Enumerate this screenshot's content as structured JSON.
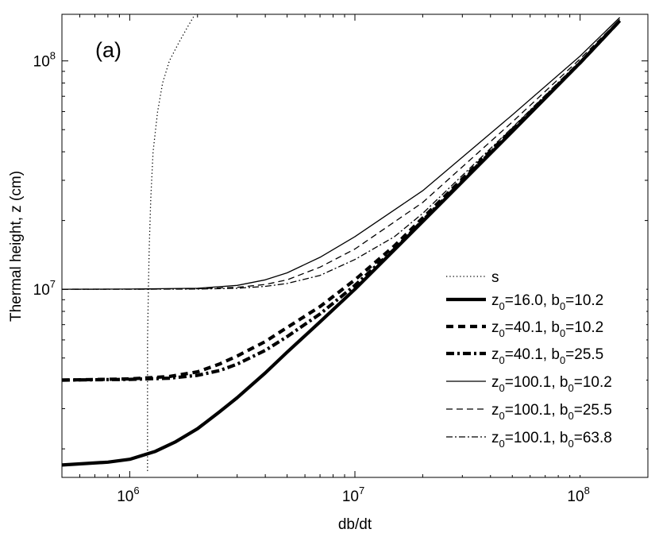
{
  "chart_data": {
    "type": "line",
    "panel_label": "(a)",
    "xlabel": "db/dt",
    "ylabel": "Thermal height, z (cm)",
    "xscale": "log",
    "yscale": "log",
    "xlim": [
      500000,
      200000000
    ],
    "ylim": [
      1500000,
      160000000
    ],
    "grid": false,
    "legend_position": "lower-right",
    "x_ticks": [
      {
        "value": 1000000,
        "base": "10",
        "exp": "6"
      },
      {
        "value": 10000000,
        "base": "10",
        "exp": "7"
      },
      {
        "value": 100000000,
        "base": "10",
        "exp": "8"
      }
    ],
    "y_ticks": [
      {
        "value": 10000000,
        "base": "10",
        "exp": "7"
      },
      {
        "value": 100000000,
        "base": "10",
        "exp": "8"
      }
    ],
    "series": [
      {
        "name": "s",
        "style": "dotted",
        "legend_parts": [
          {
            "t": "s"
          }
        ],
        "points": [
          [
            1200000,
            1600000
          ],
          [
            1200000,
            2500000
          ],
          [
            1200000,
            4000000
          ],
          [
            1200000,
            6000000
          ],
          [
            1210000,
            10000000
          ],
          [
            1220000,
            15000000
          ],
          [
            1240000,
            25000000
          ],
          [
            1270000,
            40000000
          ],
          [
            1330000,
            60000000
          ],
          [
            1400000,
            80000000
          ],
          [
            1500000,
            100000000
          ],
          [
            1650000,
            120000000
          ],
          [
            1800000,
            140000000
          ],
          [
            1950000,
            160000000
          ]
        ]
      },
      {
        "name": "z0=16.0, b0=10.2",
        "style": "thick-solid",
        "legend_parts": [
          {
            "t": "z"
          },
          {
            "t": "0",
            "sub": true
          },
          {
            "t": "=16.0, b"
          },
          {
            "t": "0",
            "sub": true
          },
          {
            "t": "=10.2"
          }
        ],
        "points": [
          [
            500000,
            1700000
          ],
          [
            800000,
            1750000
          ],
          [
            1000000,
            1800000
          ],
          [
            1300000,
            1950000
          ],
          [
            1600000,
            2150000
          ],
          [
            2000000,
            2450000
          ],
          [
            2500000,
            2900000
          ],
          [
            3000000,
            3350000
          ],
          [
            4000000,
            4300000
          ],
          [
            5000000,
            5300000
          ],
          [
            7000000,
            7200000
          ],
          [
            10000000,
            10000000
          ],
          [
            20000000,
            19800000
          ],
          [
            50000000,
            49000000
          ],
          [
            100000000,
            98000000
          ],
          [
            150000000,
            150000000
          ]
        ]
      },
      {
        "name": "z0=40.1, b0=10.2",
        "style": "thick-dashed",
        "legend_parts": [
          {
            "t": "z"
          },
          {
            "t": "0",
            "sub": true
          },
          {
            "t": "=40.1, b"
          },
          {
            "t": "0",
            "sub": true
          },
          {
            "t": "=10.2"
          }
        ],
        "points": [
          [
            500000,
            4000000
          ],
          [
            1000000,
            4050000
          ],
          [
            1500000,
            4150000
          ],
          [
            2000000,
            4350000
          ],
          [
            2500000,
            4700000
          ],
          [
            3000000,
            5100000
          ],
          [
            4000000,
            5900000
          ],
          [
            5000000,
            6800000
          ],
          [
            7000000,
            8400000
          ],
          [
            10000000,
            11000000
          ],
          [
            15000000,
            15500000
          ],
          [
            20000000,
            20500000
          ],
          [
            50000000,
            50000000
          ],
          [
            100000000,
            98000000
          ],
          [
            150000000,
            150000000
          ]
        ]
      },
      {
        "name": "z0=40.1, b0=25.5",
        "style": "thick-dashdot",
        "legend_parts": [
          {
            "t": "z"
          },
          {
            "t": "0",
            "sub": true
          },
          {
            "t": "=40.1, b"
          },
          {
            "t": "0",
            "sub": true
          },
          {
            "t": "=25.5"
          }
        ],
        "points": [
          [
            500000,
            4000000
          ],
          [
            1000000,
            4030000
          ],
          [
            1500000,
            4080000
          ],
          [
            2000000,
            4200000
          ],
          [
            2500000,
            4400000
          ],
          [
            3000000,
            4700000
          ],
          [
            4000000,
            5400000
          ],
          [
            5000000,
            6200000
          ],
          [
            7000000,
            7800000
          ],
          [
            10000000,
            10400000
          ],
          [
            15000000,
            15000000
          ],
          [
            20000000,
            20000000
          ],
          [
            50000000,
            49500000
          ],
          [
            100000000,
            98000000
          ],
          [
            150000000,
            150000000
          ]
        ]
      },
      {
        "name": "z0=100.1, b0=10.2",
        "style": "thin-solid",
        "legend_parts": [
          {
            "t": "z"
          },
          {
            "t": "0",
            "sub": true
          },
          {
            "t": "=100.1, b"
          },
          {
            "t": "0",
            "sub": true
          },
          {
            "t": "=10.2"
          }
        ],
        "points": [
          [
            500000,
            10000000
          ],
          [
            1000000,
            10020000
          ],
          [
            2000000,
            10100000
          ],
          [
            3000000,
            10400000
          ],
          [
            4000000,
            11000000
          ],
          [
            5000000,
            11800000
          ],
          [
            7000000,
            13800000
          ],
          [
            10000000,
            17000000
          ],
          [
            20000000,
            27000000
          ],
          [
            50000000,
            58000000
          ],
          [
            100000000,
            105000000
          ],
          [
            150000000,
            155000000
          ]
        ]
      },
      {
        "name": "z0=100.1, b0=25.5",
        "style": "thin-dashed",
        "legend_parts": [
          {
            "t": "z"
          },
          {
            "t": "0",
            "sub": true
          },
          {
            "t": "=100.1, b"
          },
          {
            "t": "0",
            "sub": true
          },
          {
            "t": "=25.5"
          }
        ],
        "points": [
          [
            500000,
            10000000
          ],
          [
            1000000,
            10010000
          ],
          [
            2000000,
            10050000
          ],
          [
            3000000,
            10200000
          ],
          [
            4000000,
            10500000
          ],
          [
            5000000,
            11000000
          ],
          [
            7000000,
            12500000
          ],
          [
            10000000,
            15000000
          ],
          [
            20000000,
            24000000
          ],
          [
            50000000,
            54000000
          ],
          [
            100000000,
            102000000
          ],
          [
            150000000,
            152000000
          ]
        ]
      },
      {
        "name": "z0=100.1, b0=63.8",
        "style": "thin-dashdot",
        "legend_parts": [
          {
            "t": "z"
          },
          {
            "t": "0",
            "sub": true
          },
          {
            "t": "=100.1, b"
          },
          {
            "t": "0",
            "sub": true
          },
          {
            "t": "=63.8"
          }
        ],
        "points": [
          [
            500000,
            10000000
          ],
          [
            1000000,
            10000000
          ],
          [
            2000000,
            10020000
          ],
          [
            3000000,
            10100000
          ],
          [
            4000000,
            10300000
          ],
          [
            5000000,
            10600000
          ],
          [
            7000000,
            11500000
          ],
          [
            10000000,
            13500000
          ],
          [
            15000000,
            17000000
          ],
          [
            20000000,
            21500000
          ],
          [
            50000000,
            51000000
          ],
          [
            100000000,
            100000000
          ],
          [
            150000000,
            150000000
          ]
        ]
      }
    ]
  }
}
